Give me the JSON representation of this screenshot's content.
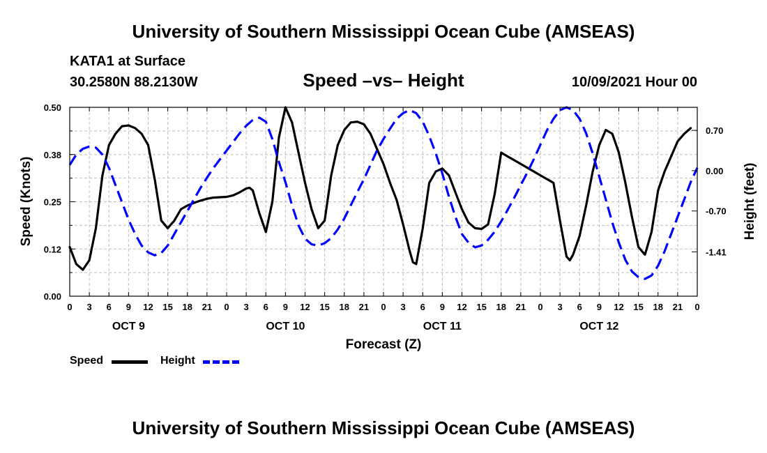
{
  "header": {
    "title": "University of Southern Mississippi Ocean Cube (AMSEAS)",
    "station": "KATA1 at Surface",
    "coords": "30.2580N  88.2130W",
    "subtitle": "Speed –vs– Height",
    "datetime": "10/09/2021 Hour 00"
  },
  "footer": {
    "title": "University of Southern Mississippi Ocean Cube (AMSEAS)"
  },
  "legend": {
    "speed_label": "Speed",
    "height_label": "Height"
  },
  "chart_data": {
    "type": "line",
    "title": "Speed –vs– Height",
    "xlabel": "Forecast (Z)",
    "ylabel_left": "Speed (Knots)",
    "ylabel_right": "Height (feet)",
    "x_range_hours": [
      0,
      96
    ],
    "y_left_range": [
      0,
      0.5
    ],
    "y_right_range": [
      -2.18,
      1.1
    ],
    "left_ticks": [
      {
        "value": 0.0,
        "label": "0.00"
      },
      {
        "value": 0.125,
        "label": "0.12"
      },
      {
        "value": 0.25,
        "label": "0.25"
      },
      {
        "value": 0.375,
        "label": "0.38"
      },
      {
        "value": 0.5,
        "label": "0.50"
      }
    ],
    "right_ticks": [
      {
        "value": 0.7,
        "label": "0.70"
      },
      {
        "value": 0.0,
        "label": "0.00"
      },
      {
        "value": -0.7,
        "label": "-0.70"
      },
      {
        "value": -1.41,
        "label": "-1.41"
      }
    ],
    "x_tick_labels": [
      "0",
      "3",
      "6",
      "9",
      "12",
      "15",
      "18",
      "21",
      "0",
      "3",
      "6",
      "9",
      "12",
      "15",
      "18",
      "21",
      "0",
      "3",
      "6",
      "9",
      "12",
      "15",
      "18",
      "21",
      "0",
      "3",
      "6",
      "9",
      "12",
      "15",
      "18",
      "21",
      "0"
    ],
    "day_labels": [
      {
        "hour": 9,
        "label": "OCT 9"
      },
      {
        "hour": 33,
        "label": "OCT 10"
      },
      {
        "hour": 57,
        "label": "OCT 11"
      },
      {
        "hour": 81,
        "label": "OCT 12"
      }
    ],
    "grid": true,
    "series": [
      {
        "name": "Speed",
        "axis": "left",
        "color": "#000000",
        "dash": "solid",
        "points": [
          [
            0,
            0.13
          ],
          [
            1,
            0.085
          ],
          [
            2,
            0.07
          ],
          [
            3,
            0.095
          ],
          [
            4,
            0.18
          ],
          [
            5,
            0.32
          ],
          [
            6,
            0.4
          ],
          [
            7,
            0.43
          ],
          [
            8,
            0.45
          ],
          [
            9,
            0.452
          ],
          [
            10,
            0.445
          ],
          [
            11,
            0.43
          ],
          [
            12,
            0.4
          ],
          [
            13,
            0.31
          ],
          [
            14,
            0.2
          ],
          [
            15,
            0.18
          ],
          [
            16,
            0.2
          ],
          [
            17,
            0.23
          ],
          [
            18,
            0.24
          ],
          [
            19,
            0.247
          ],
          [
            20,
            0.253
          ],
          [
            21,
            0.258
          ],
          [
            22,
            0.261
          ],
          [
            23,
            0.262
          ],
          [
            24,
            0.263
          ],
          [
            25,
            0.267
          ],
          [
            26,
            0.275
          ],
          [
            27,
            0.285
          ],
          [
            27.5,
            0.287
          ],
          [
            28,
            0.28
          ],
          [
            29,
            0.22
          ],
          [
            30,
            0.17
          ],
          [
            31,
            0.25
          ],
          [
            32,
            0.42
          ],
          [
            33,
            0.5
          ],
          [
            34,
            0.46
          ],
          [
            35,
            0.38
          ],
          [
            36,
            0.3
          ],
          [
            37,
            0.23
          ],
          [
            38,
            0.18
          ],
          [
            39,
            0.2
          ],
          [
            40,
            0.32
          ],
          [
            41,
            0.4
          ],
          [
            42,
            0.44
          ],
          [
            43,
            0.46
          ],
          [
            44,
            0.462
          ],
          [
            45,
            0.455
          ],
          [
            46,
            0.43
          ],
          [
            47,
            0.39
          ],
          [
            48,
            0.35
          ],
          [
            49,
            0.3
          ],
          [
            50,
            0.255
          ],
          [
            51,
            0.19
          ],
          [
            52,
            0.12
          ],
          [
            52.5,
            0.09
          ],
          [
            53,
            0.085
          ],
          [
            54,
            0.18
          ],
          [
            55,
            0.3
          ],
          [
            56,
            0.33
          ],
          [
            57,
            0.338
          ],
          [
            58,
            0.32
          ],
          [
            59,
            0.275
          ],
          [
            60,
            0.23
          ],
          [
            61,
            0.195
          ],
          [
            62,
            0.18
          ],
          [
            63,
            0.178
          ],
          [
            64,
            0.19
          ],
          [
            65,
            0.27
          ],
          [
            66,
            0.38
          ],
          [
            67,
            0.37
          ],
          [
            68,
            0.36
          ],
          [
            69,
            0.35
          ],
          [
            70,
            0.34
          ],
          [
            71,
            0.33
          ],
          [
            72,
            0.32
          ],
          [
            73,
            0.31
          ],
          [
            74,
            0.3
          ],
          [
            75,
            0.2
          ],
          [
            76,
            0.105
          ],
          [
            76.5,
            0.095
          ],
          [
            77,
            0.11
          ],
          [
            78,
            0.16
          ],
          [
            79,
            0.24
          ],
          [
            80,
            0.33
          ],
          [
            81,
            0.4
          ],
          [
            82,
            0.44
          ],
          [
            83,
            0.43
          ],
          [
            84,
            0.38
          ],
          [
            85,
            0.3
          ],
          [
            86,
            0.21
          ],
          [
            87,
            0.13
          ],
          [
            88,
            0.11
          ],
          [
            89,
            0.17
          ],
          [
            90,
            0.28
          ],
          [
            91,
            0.33
          ],
          [
            92,
            0.37
          ],
          [
            93,
            0.41
          ],
          [
            94,
            0.43
          ],
          [
            95,
            0.445
          ]
        ]
      },
      {
        "name": "Height",
        "axis": "right",
        "color": "#0000ff",
        "dash": "dashed",
        "points": [
          [
            0,
            0.1
          ],
          [
            1,
            0.28
          ],
          [
            2,
            0.38
          ],
          [
            3,
            0.42
          ],
          [
            4,
            0.4
          ],
          [
            5,
            0.28
          ],
          [
            6,
            0.05
          ],
          [
            7,
            -0.25
          ],
          [
            8,
            -0.55
          ],
          [
            9,
            -0.85
          ],
          [
            10,
            -1.1
          ],
          [
            11,
            -1.3
          ],
          [
            12,
            -1.42
          ],
          [
            13,
            -1.47
          ],
          [
            14,
            -1.43
          ],
          [
            15,
            -1.3
          ],
          [
            16,
            -1.1
          ],
          [
            17,
            -0.9
          ],
          [
            18,
            -0.7
          ],
          [
            19,
            -0.5
          ],
          [
            20,
            -0.3
          ],
          [
            21,
            -0.12
          ],
          [
            22,
            0.05
          ],
          [
            23,
            0.2
          ],
          [
            24,
            0.35
          ],
          [
            25,
            0.5
          ],
          [
            26,
            0.65
          ],
          [
            27,
            0.78
          ],
          [
            28,
            0.88
          ],
          [
            29,
            0.92
          ],
          [
            30,
            0.85
          ],
          [
            31,
            0.55
          ],
          [
            32,
            0.15
          ],
          [
            33,
            -0.2
          ],
          [
            34,
            -0.6
          ],
          [
            35,
            -0.95
          ],
          [
            36,
            -1.18
          ],
          [
            37,
            -1.28
          ],
          [
            38,
            -1.3
          ],
          [
            39,
            -1.26
          ],
          [
            40,
            -1.17
          ],
          [
            41,
            -1.02
          ],
          [
            42,
            -0.83
          ],
          [
            43,
            -0.6
          ],
          [
            44,
            -0.37
          ],
          [
            45,
            -0.15
          ],
          [
            46,
            0.1
          ],
          [
            47,
            0.35
          ],
          [
            48,
            0.55
          ],
          [
            49,
            0.73
          ],
          [
            50,
            0.9
          ],
          [
            51,
            1.0
          ],
          [
            52,
            1.05
          ],
          [
            53,
            1.0
          ],
          [
            54,
            0.85
          ],
          [
            55,
            0.6
          ],
          [
            56,
            0.3
          ],
          [
            57,
            -0.05
          ],
          [
            58,
            -0.45
          ],
          [
            59,
            -0.8
          ],
          [
            60,
            -1.1
          ],
          [
            61,
            -1.25
          ],
          [
            62,
            -1.33
          ],
          [
            63,
            -1.3
          ],
          [
            64,
            -1.2
          ],
          [
            65,
            -1.06
          ],
          [
            66,
            -0.88
          ],
          [
            67,
            -0.68
          ],
          [
            68,
            -0.47
          ],
          [
            69,
            -0.25
          ],
          [
            70,
            -0.03
          ],
          [
            71,
            0.2
          ],
          [
            72,
            0.45
          ],
          [
            73,
            0.7
          ],
          [
            74,
            0.9
          ],
          [
            75,
            1.05
          ],
          [
            76,
            1.1
          ],
          [
            77,
            1.05
          ],
          [
            78,
            0.9
          ],
          [
            79,
            0.65
          ],
          [
            80,
            0.3
          ],
          [
            81,
            -0.1
          ],
          [
            82,
            -0.5
          ],
          [
            83,
            -0.9
          ],
          [
            84,
            -1.25
          ],
          [
            85,
            -1.55
          ],
          [
            86,
            -1.75
          ],
          [
            87,
            -1.85
          ],
          [
            88,
            -1.88
          ],
          [
            89,
            -1.82
          ],
          [
            90,
            -1.65
          ],
          [
            91,
            -1.4
          ],
          [
            92,
            -1.1
          ],
          [
            93,
            -0.8
          ],
          [
            94,
            -0.5
          ],
          [
            95,
            -0.2
          ],
          [
            96,
            0.05
          ]
        ]
      }
    ]
  }
}
